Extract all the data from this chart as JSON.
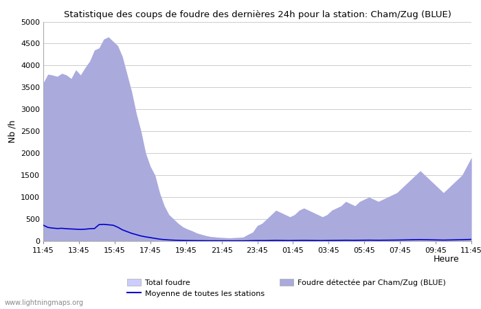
{
  "title": "Statistique des coups de foudre des dernières 24h pour la station: Cham/Zug (BLUE)",
  "ylabel": "Nb /h",
  "xlabel": "Heure",
  "watermark": "www.lightningmaps.org",
  "ylim": [
    0,
    5000
  ],
  "yticks": [
    0,
    500,
    1000,
    1500,
    2000,
    2500,
    3000,
    3500,
    4000,
    4500,
    5000
  ],
  "xtick_labels": [
    "11:45",
    "13:45",
    "15:45",
    "17:45",
    "19:45",
    "21:45",
    "23:45",
    "01:45",
    "03:45",
    "05:45",
    "07:45",
    "09:45",
    "11:45"
  ],
  "legend_labels": [
    "Total foudre",
    "Moyenne de toutes les stations",
    "Foudre détectée par Cham/Zug (BLUE)"
  ],
  "fill_color_total": "#ccccff",
  "fill_color_detected": "#aaaadd",
  "line_color_moyenne": "#0000cc",
  "background_color": "#ffffff",
  "grid_color": "#cccccc",
  "total_foudre": [
    3600,
    3800,
    3780,
    3750,
    3820,
    3780,
    3700,
    3900,
    3780,
    3950,
    4100,
    4350,
    4400,
    4600,
    4650,
    4550,
    4450,
    4200,
    3800,
    3400,
    2900,
    2500,
    2000,
    1700,
    1500,
    1100,
    800,
    600,
    500,
    400,
    320,
    270,
    230,
    180,
    150,
    120,
    100,
    90,
    80,
    75,
    70,
    75,
    80,
    90,
    150,
    200,
    350,
    400,
    500,
    600,
    700,
    650,
    600,
    550,
    600,
    700,
    750,
    700,
    650,
    600,
    550,
    600,
    700,
    750,
    800,
    900,
    850,
    800,
    900,
    950,
    1000,
    950,
    900,
    950,
    1000,
    1050,
    1100,
    1200,
    1300,
    1400,
    1500,
    1600,
    1500,
    1400,
    1300,
    1200,
    1100,
    1200,
    1300,
    1400,
    1500,
    1700,
    1900
  ],
  "moyenne": [
    360,
    310,
    295,
    285,
    290,
    280,
    275,
    270,
    265,
    270,
    280,
    285,
    375,
    380,
    370,
    360,
    315,
    255,
    215,
    175,
    145,
    115,
    95,
    78,
    60,
    43,
    32,
    25,
    20,
    16,
    13,
    11,
    10,
    9,
    8,
    7,
    6,
    6,
    5,
    5,
    4,
    4,
    5,
    5,
    7,
    9,
    11,
    10,
    11,
    13,
    15,
    14,
    12,
    11,
    13,
    14,
    15,
    14,
    13,
    12,
    11,
    13,
    14,
    15,
    16,
    18,
    17,
    16,
    18,
    19,
    20,
    19,
    18,
    19,
    20,
    21,
    22,
    24,
    26,
    28,
    30,
    32,
    30,
    28,
    26,
    24,
    22,
    24,
    26,
    28,
    30,
    34,
    38
  ]
}
